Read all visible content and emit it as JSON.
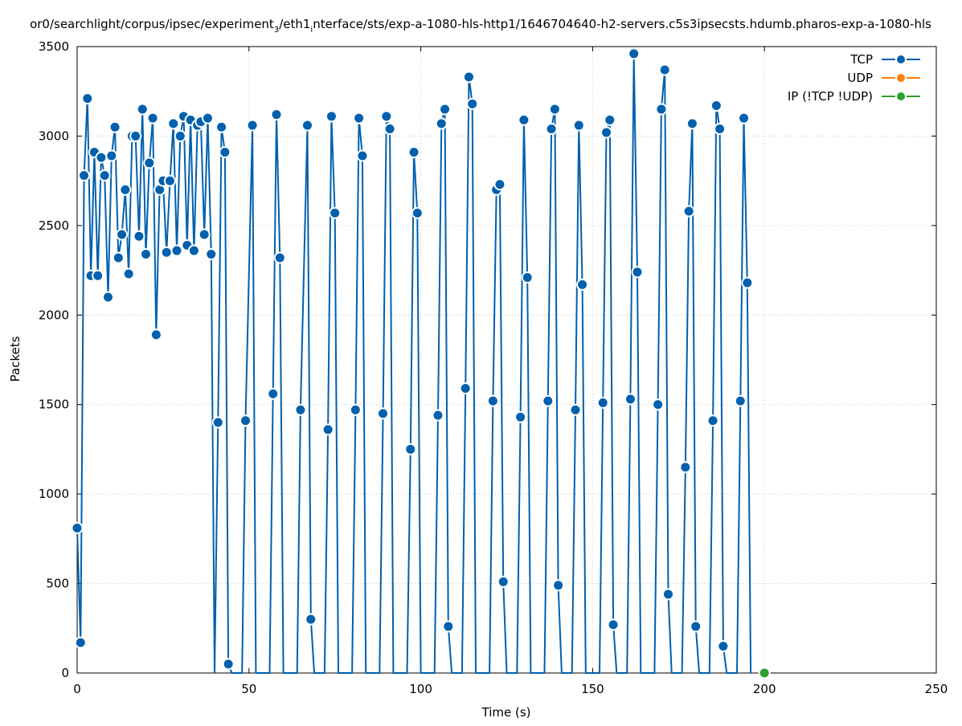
{
  "chart_data": {
    "type": "line",
    "title": "or0/searchlight/corpus/ipsec/experiment",
    "title_sub": "3",
    "title_mid": "/eth1",
    "title_sub2": "i",
    "title_end": "nterface/sts/exp-a-1080-hls-http1/1646704640-h2-servers.c5s3ipsecsts.hdumb.pharos-exp-a-1080-hls",
    "xlabel": "Time (s)",
    "ylabel": "Packets",
    "xlim": [
      0,
      250
    ],
    "ylim": [
      0,
      3500
    ],
    "xticks": [
      0,
      50,
      100,
      150,
      200,
      250
    ],
    "yticks": [
      0,
      500,
      1000,
      1500,
      2000,
      2500,
      3000,
      3500
    ],
    "grid": true,
    "legend_position": "top-right",
    "series": [
      {
        "name": "TCP",
        "color": "#0060ad",
        "points": [
          [
            0,
            810
          ],
          [
            1,
            170
          ],
          [
            2,
            2780
          ],
          [
            3,
            3210
          ],
          [
            4,
            2220
          ],
          [
            5,
            2910
          ],
          [
            6,
            2220
          ],
          [
            7,
            2880
          ],
          [
            8,
            2780
          ],
          [
            9,
            2100
          ],
          [
            10,
            2890
          ],
          [
            11,
            3050
          ],
          [
            12,
            2320
          ],
          [
            13,
            2450
          ],
          [
            14,
            2700
          ],
          [
            15,
            2230
          ],
          [
            16,
            3000
          ],
          [
            17,
            3000
          ],
          [
            18,
            2440
          ],
          [
            19,
            3150
          ],
          [
            20,
            2340
          ],
          [
            21,
            2850
          ],
          [
            22,
            3100
          ],
          [
            23,
            1890
          ],
          [
            24,
            2700
          ],
          [
            25,
            2750
          ],
          [
            26,
            2350
          ],
          [
            27,
            2750
          ],
          [
            28,
            3070
          ],
          [
            29,
            2360
          ],
          [
            30,
            3000
          ],
          [
            31,
            3110
          ],
          [
            32,
            2390
          ],
          [
            33,
            3090
          ],
          [
            34,
            2360
          ],
          [
            35,
            3060
          ],
          [
            36,
            3080
          ],
          [
            37,
            2450
          ],
          [
            38,
            3100
          ],
          [
            39,
            2340
          ],
          [
            40,
            0
          ],
          [
            41,
            1400
          ],
          [
            42,
            3050
          ],
          [
            43,
            2910
          ],
          [
            44,
            50
          ],
          [
            45,
            0
          ],
          [
            48,
            0
          ],
          [
            49,
            1410
          ],
          [
            51,
            3060
          ],
          [
            52,
            0
          ],
          [
            56,
            0
          ],
          [
            57,
            1560
          ],
          [
            58,
            3120
          ],
          [
            59,
            2320
          ],
          [
            60,
            0
          ],
          [
            64,
            0
          ],
          [
            65,
            1470
          ],
          [
            67,
            3060
          ],
          [
            68,
            300
          ],
          [
            69,
            0
          ],
          [
            72,
            0
          ],
          [
            73,
            1360
          ],
          [
            74,
            3110
          ],
          [
            75,
            2570
          ],
          [
            76,
            0
          ],
          [
            80,
            0
          ],
          [
            81,
            1470
          ],
          [
            82,
            3100
          ],
          [
            83,
            2890
          ],
          [
            84,
            0
          ],
          [
            88,
            0
          ],
          [
            89,
            1450
          ],
          [
            90,
            3110
          ],
          [
            91,
            3040
          ],
          [
            92,
            0
          ],
          [
            96,
            0
          ],
          [
            97,
            1250
          ],
          [
            98,
            2910
          ],
          [
            99,
            2570
          ],
          [
            100,
            0
          ],
          [
            104,
            0
          ],
          [
            105,
            1440
          ],
          [
            106,
            3070
          ],
          [
            107,
            3150
          ],
          [
            108,
            260
          ],
          [
            109,
            0
          ],
          [
            112,
            0
          ],
          [
            113,
            1590
          ],
          [
            114,
            3330
          ],
          [
            115,
            3180
          ],
          [
            116,
            0
          ],
          [
            120,
            0
          ],
          [
            121,
            1520
          ],
          [
            122,
            2700
          ],
          [
            123,
            2730
          ],
          [
            124,
            510
          ],
          [
            125,
            0
          ],
          [
            128,
            0
          ],
          [
            129,
            1430
          ],
          [
            130,
            3090
          ],
          [
            131,
            2210
          ],
          [
            132,
            0
          ],
          [
            136,
            0
          ],
          [
            137,
            1520
          ],
          [
            138,
            3040
          ],
          [
            139,
            3150
          ],
          [
            140,
            490
          ],
          [
            141,
            0
          ],
          [
            144,
            0
          ],
          [
            145,
            1470
          ],
          [
            146,
            3060
          ],
          [
            147,
            2170
          ],
          [
            148,
            0
          ],
          [
            152,
            0
          ],
          [
            153,
            1510
          ],
          [
            154,
            3020
          ],
          [
            155,
            3090
          ],
          [
            156,
            270
          ],
          [
            157,
            0
          ],
          [
            160,
            0
          ],
          [
            161,
            1530
          ],
          [
            162,
            3460
          ],
          [
            163,
            2240
          ],
          [
            164,
            0
          ],
          [
            168,
            0
          ],
          [
            169,
            1500
          ],
          [
            170,
            3150
          ],
          [
            171,
            3370
          ],
          [
            172,
            440
          ],
          [
            173,
            0
          ],
          [
            176,
            0
          ],
          [
            177,
            1150
          ],
          [
            178,
            2580
          ],
          [
            179,
            3070
          ],
          [
            180,
            260
          ],
          [
            181,
            0
          ],
          [
            184,
            0
          ],
          [
            185,
            1410
          ],
          [
            186,
            3170
          ],
          [
            187,
            3040
          ],
          [
            188,
            150
          ],
          [
            189,
            0
          ],
          [
            192,
            0
          ],
          [
            193,
            1520
          ],
          [
            194,
            3100
          ],
          [
            195,
            2180
          ],
          [
            196,
            0
          ]
        ]
      },
      {
        "name": "UDP",
        "color": "#ff7f0e",
        "points": []
      },
      {
        "name": "IP (!TCP  !UDP)",
        "color": "#2ca02c",
        "points": [
          [
            200,
            0
          ]
        ]
      }
    ]
  }
}
